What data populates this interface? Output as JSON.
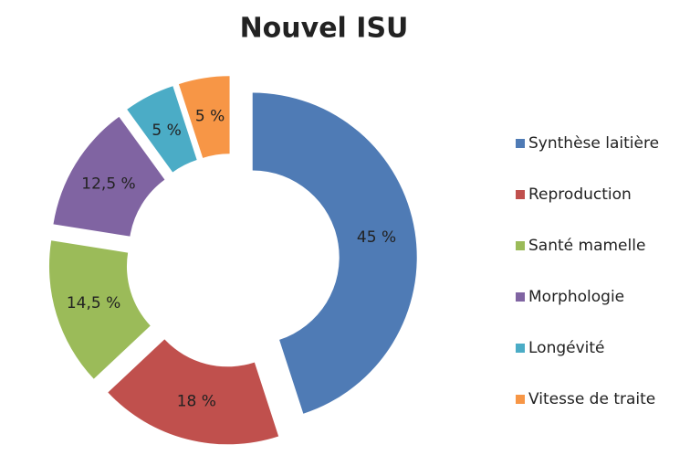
{
  "chart_data": {
    "type": "pie",
    "donut": true,
    "title": "Nouvel ISU",
    "categories": [
      "Synthèse laitière",
      "Reproduction",
      "Santé mamelle",
      "Morphologie",
      "Longévité",
      "Vitesse de traite"
    ],
    "values": [
      45,
      18,
      14.5,
      12.5,
      5,
      5
    ],
    "value_labels": [
      "45 %",
      "18 %",
      "14,5 %",
      "12,5 %",
      "5 %",
      "5 %"
    ],
    "colors": [
      "#4f7bb5",
      "#c0504d",
      "#9bbb59",
      "#8064a2",
      "#4bacc6",
      "#f79646"
    ],
    "legend": "right"
  }
}
